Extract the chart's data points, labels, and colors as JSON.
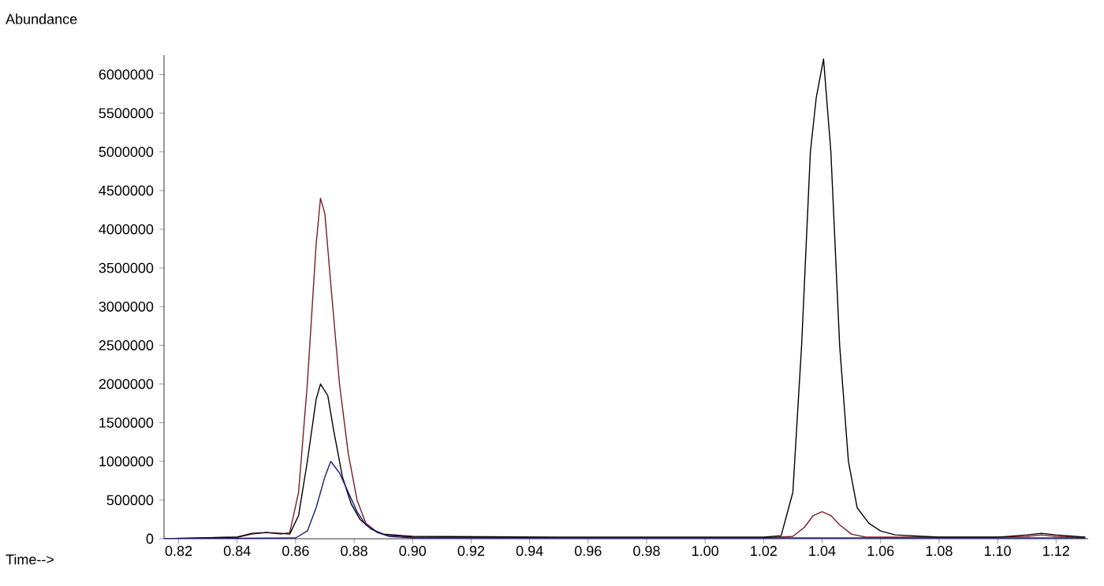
{
  "chart_data": {
    "type": "line",
    "xlabel": "Time-->",
    "ylabel": "Abundance",
    "xlim": [
      0.815,
      1.131
    ],
    "ylim": [
      0,
      6250000
    ],
    "xticks": [
      0.82,
      0.84,
      0.86,
      0.88,
      {
        "value": 0.9,
        "label": "0.90"
      },
      0.92,
      0.94,
      0.96,
      0.98,
      {
        "value": 1.0,
        "label": "1.00"
      },
      1.02,
      1.04,
      1.06,
      1.08,
      {
        "value": 1.1,
        "label": "1.10"
      },
      1.12
    ],
    "yticks": [
      0,
      500000,
      1000000,
      1500000,
      2000000,
      2500000,
      3000000,
      3500000,
      4000000,
      4500000,
      5000000,
      5500000,
      6000000
    ],
    "series": [
      {
        "color": "#7b1c2a",
        "x": [
          0.815,
          0.84,
          0.845,
          0.85,
          0.855,
          0.858,
          0.861,
          0.864,
          0.867,
          0.8685,
          0.87,
          0.872,
          0.875,
          0.878,
          0.881,
          0.884,
          0.888,
          0.892,
          0.9,
          0.95,
          1.02,
          1.03,
          1.034,
          1.037,
          1.04,
          1.043,
          1.046,
          1.05,
          1.055,
          1.1,
          1.11,
          1.115,
          1.12,
          1.13
        ],
        "values": [
          0,
          20000,
          60000,
          80000,
          60000,
          80000,
          600000,
          2000000,
          3800000,
          4400000,
          4200000,
          3300000,
          2000000,
          1100000,
          500000,
          200000,
          80000,
          40000,
          20000,
          10000,
          10000,
          30000,
          150000,
          300000,
          350000,
          300000,
          180000,
          60000,
          20000,
          20000,
          30000,
          50000,
          30000,
          10000
        ]
      },
      {
        "color": "#000000",
        "x": [
          0.815,
          0.84,
          0.845,
          0.85,
          0.855,
          0.858,
          0.861,
          0.864,
          0.867,
          0.8685,
          0.871,
          0.873,
          0.876,
          0.879,
          0.882,
          0.886,
          0.89,
          0.9,
          0.95,
          1.02,
          1.026,
          1.03,
          1.033,
          1.036,
          1.038,
          1.0405,
          1.043,
          1.046,
          1.049,
          1.052,
          1.056,
          1.06,
          1.065,
          1.08,
          1.1,
          1.11,
          1.115,
          1.12,
          1.13
        ],
        "values": [
          0,
          20000,
          70000,
          80000,
          70000,
          60000,
          300000,
          1000000,
          1800000,
          2000000,
          1850000,
          1400000,
          800000,
          450000,
          250000,
          120000,
          60000,
          30000,
          20000,
          20000,
          40000,
          600000,
          2500000,
          5000000,
          5700000,
          6200000,
          5000000,
          2500000,
          1000000,
          400000,
          200000,
          100000,
          50000,
          20000,
          20000,
          50000,
          70000,
          50000,
          20000
        ]
      },
      {
        "color": "#1c1c7c",
        "x": [
          0.815,
          0.86,
          0.864,
          0.867,
          0.87,
          0.872,
          0.875,
          0.878,
          0.881,
          0.884,
          0.888,
          0.892,
          0.9,
          1.13
        ],
        "values": [
          0,
          10000,
          100000,
          400000,
          800000,
          1000000,
          850000,
          600000,
          350000,
          180000,
          80000,
          30000,
          10000,
          10000
        ]
      }
    ]
  }
}
